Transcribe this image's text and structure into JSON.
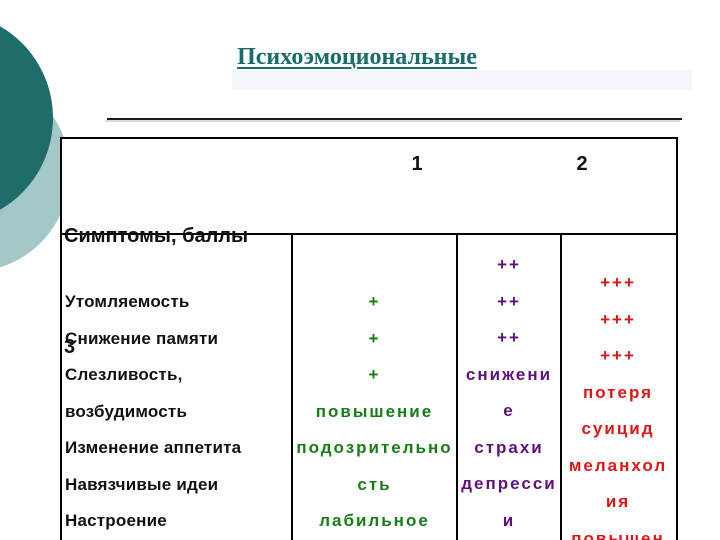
{
  "slide": {
    "title": "Психоэмоциональные",
    "accent_colors": {
      "title_teal": "#1a6b6b",
      "score1_green": "#177d17",
      "score2_purple": "#5e1080",
      "score3_red": "#e01515",
      "circle_dark_teal": "#1e6c6c",
      "circle_light_teal": "#a4c8c8",
      "table_border": "#000000"
    }
  },
  "table": {
    "header": {
      "symptoms_line1": "Симптомы, баллы",
      "symptoms_line2": "3",
      "score_col_1": "1",
      "score_col_2": "2"
    },
    "body": {
      "symptoms": [
        "Утомляемость",
        "Снижение памяти",
        "Слезливость,",
        "возбудимость",
        "Изменение аппетита",
        "Навязчивые идеи",
        "Настроение"
      ],
      "score1": [
        "+",
        "+",
        "+",
        "повышение",
        "подозрительно",
        "сть",
        "лабильное"
      ],
      "score2": [
        "++",
        "++",
        "++",
        "снижени",
        "е",
        "страхи",
        "депресси",
        "и"
      ],
      "score3": [
        "+++",
        "+++",
        "+++",
        "потеря",
        "суицид",
        "меланхол",
        "ия",
        "повышен"
      ]
    }
  }
}
